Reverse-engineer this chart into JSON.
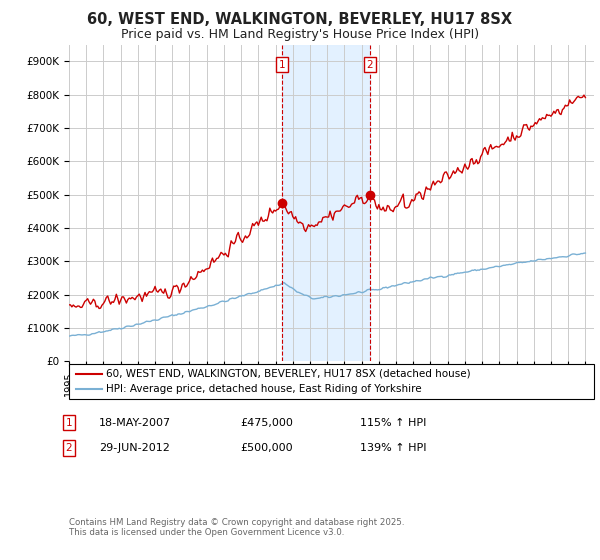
{
  "title": "60, WEST END, WALKINGTON, BEVERLEY, HU17 8SX",
  "subtitle": "Price paid vs. HM Land Registry's House Price Index (HPI)",
  "ylabel_ticks": [
    "£0",
    "£100K",
    "£200K",
    "£300K",
    "£400K",
    "£500K",
    "£600K",
    "£700K",
    "£800K",
    "£900K"
  ],
  "ytick_values": [
    0,
    100000,
    200000,
    300000,
    400000,
    500000,
    600000,
    700000,
    800000,
    900000
  ],
  "ylim": [
    0,
    950000
  ],
  "xlim_start": 1995,
  "xlim_end": 2025.5,
  "background_color": "#ffffff",
  "plot_bg_color": "#ffffff",
  "grid_color": "#cccccc",
  "red_line_color": "#cc0000",
  "blue_line_color": "#7ab0d4",
  "marker1_date": 2007.38,
  "marker1_price": 475000,
  "marker1_label": "1",
  "marker1_hpi_pct": "115% ↑ HPI",
  "marker1_date_str": "18-MAY-2007",
  "marker2_date": 2012.49,
  "marker2_price": 500000,
  "marker2_label": "2",
  "marker2_hpi_pct": "139% ↑ HPI",
  "marker2_date_str": "29-JUN-2012",
  "shade_color": "#ddeeff",
  "legend_line1": "60, WEST END, WALKINGTON, BEVERLEY, HU17 8SX (detached house)",
  "legend_line2": "HPI: Average price, detached house, East Riding of Yorkshire",
  "footer": "Contains HM Land Registry data © Crown copyright and database right 2025.\nThis data is licensed under the Open Government Licence v3.0.",
  "title_fontsize": 10.5,
  "subtitle_fontsize": 9,
  "axis_fontsize": 7.5,
  "legend_fontsize": 7.5
}
